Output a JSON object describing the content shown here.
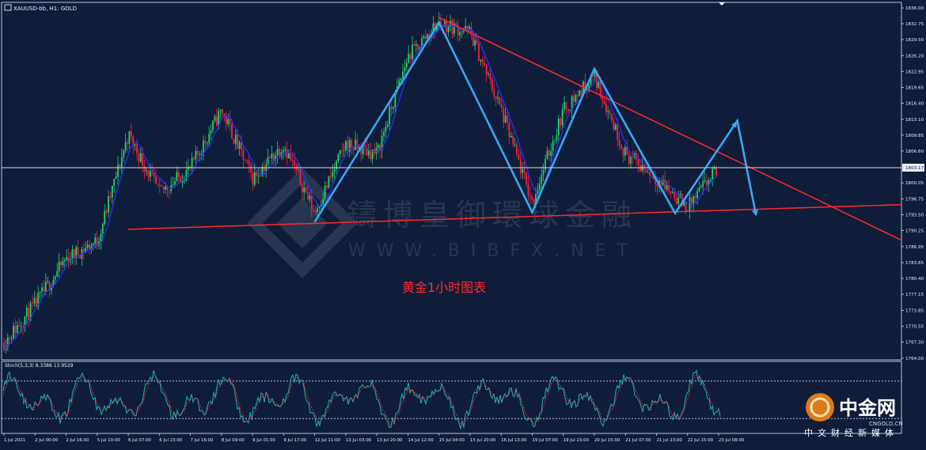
{
  "header": {
    "symbol_text": "XAUUSD-bb, H1:  GOLD"
  },
  "price_axis": {
    "ticks": [
      "1836.00",
      "1832.75",
      "1829.50",
      "1826.20",
      "1822.95",
      "1819.65",
      "1816.40",
      "1813.10",
      "1809.85",
      "1806.60",
      "1803.17",
      "1800.05",
      "1796.75",
      "1793.50",
      "1790.25",
      "1786.95",
      "1783.65",
      "1780.40",
      "1777.15",
      "1773.85",
      "1770.55",
      "1767.30",
      "1764.00"
    ],
    "current_price": "1803.17"
  },
  "time_axis": {
    "labels": [
      "1 Jul 2021",
      "2 Jul 00:00",
      "2 Jul 16:00",
      "5 Jul 10:00",
      "6 Jul 07:00",
      "6 Jul 23:00",
      "7 Jul 16:00",
      "8 Jul 09:00",
      "9 Jul 01:00",
      "9 Jul 17:00",
      "12 Jul 11:00",
      "13 Jul 03:00",
      "13 Jul 20:00",
      "14 Jul 12:00",
      "15 Jul 04:00",
      "15 Jul 20:00",
      "16 Jul 13:00",
      "19 Jul 07:00",
      "19 Jul 23:00",
      "20 Jul 15:00",
      "21 Jul 07:00",
      "21 Jul 23:00",
      "22 Jul 15:00",
      "23 Jul 08:00"
    ]
  },
  "stoch": {
    "label": "Stoch(5,3,3) 8.3386 13.9529",
    "levels": [
      80,
      20
    ]
  },
  "annotation": {
    "chart_title": "黄金1小时图表",
    "watermark_cn": "鑄博皇御環球金融",
    "watermark_url": "WWW.BIBFX.NET"
  },
  "brand": {
    "name": "中金网",
    "domain": "CNGOLD.CN",
    "tagline": "中文财经新媒体"
  },
  "colors": {
    "background": "#0f1d3a",
    "bull_candle": "#21d36a",
    "bear_candle": "#ff1e3c",
    "ma_line": "#2233ff",
    "trendline": "#ff2a2a",
    "wave_arrow": "#3aa7f0",
    "grid_line": "#cfd6e6"
  },
  "chart_data": {
    "type": "candlestick",
    "symbol": "XAUUSD-bb",
    "timeframe": "H1",
    "ylim": [
      1764.0,
      1836.0
    ],
    "current_price": 1803.17,
    "close_path": [
      {
        "x": "1 Jul 2021",
        "y": 1767.3
      },
      {
        "x": "2 Jul 00:00",
        "y": 1775.0
      },
      {
        "x": "2 Jul 16:00",
        "y": 1784.5
      },
      {
        "x": "5 Jul 10:00",
        "y": 1788.0
      },
      {
        "x": "6 Jul 07:00",
        "y": 1810.0
      },
      {
        "x": "6 Jul 23:00",
        "y": 1798.0
      },
      {
        "x": "7 Jul 16:00",
        "y": 1803.0
      },
      {
        "x": "8 Jul 09:00",
        "y": 1815.0
      },
      {
        "x": "9 Jul 01:00",
        "y": 1801.0
      },
      {
        "x": "9 Jul 17:00",
        "y": 1808.0
      },
      {
        "x": "12 Jul 11:00",
        "y": 1794.0
      },
      {
        "x": "13 Jul 03:00",
        "y": 1808.0
      },
      {
        "x": "13 Jul 20:00",
        "y": 1806.0
      },
      {
        "x": "14 Jul 12:00",
        "y": 1826.0
      },
      {
        "x": "15 Jul 04:00",
        "y": 1833.0
      },
      {
        "x": "15 Jul 20:00",
        "y": 1831.0
      },
      {
        "x": "16 Jul 13:00",
        "y": 1815.0
      },
      {
        "x": "19 Jul 07:00",
        "y": 1796.0
      },
      {
        "x": "19 Jul 23:00",
        "y": 1815.0
      },
      {
        "x": "20 Jul 15:00",
        "y": 1822.0
      },
      {
        "x": "21 Jul 07:00",
        "y": 1806.0
      },
      {
        "x": "21 Jul 23:00",
        "y": 1801.0
      },
      {
        "x": "22 Jul 15:00",
        "y": 1795.0
      },
      {
        "x": "23 Jul 08:00",
        "y": 1803.2
      }
    ],
    "trendlines": [
      {
        "name": "upper resistance",
        "from": {
          "x": "15 Jul 04:00",
          "y": 1834.0
        },
        "to": {
          "x": "23 Jul 08:00+",
          "y": 1804.5
        }
      },
      {
        "name": "lower support",
        "from": {
          "x": "6 Jul 07:00",
          "y": 1790.5
        },
        "to": {
          "x": "23 Jul 08:00+",
          "y": 1794.5
        }
      }
    ],
    "wave_points": [
      {
        "x": "12 Jul 11:00",
        "y": 1792.0
      },
      {
        "x": "15 Jul 04:00",
        "y": 1833.0
      },
      {
        "x": "19 Jul 07:00",
        "y": 1794.0
      },
      {
        "x": "20 Jul 15:00",
        "y": 1823.5
      },
      {
        "x": "22 Jul 00:00",
        "y": 1793.8
      },
      {
        "x": "23 Jul 08:00+",
        "y": 1812.8
      },
      {
        "x": "23 Jul 08:00++",
        "y": 1793.5
      }
    ]
  }
}
